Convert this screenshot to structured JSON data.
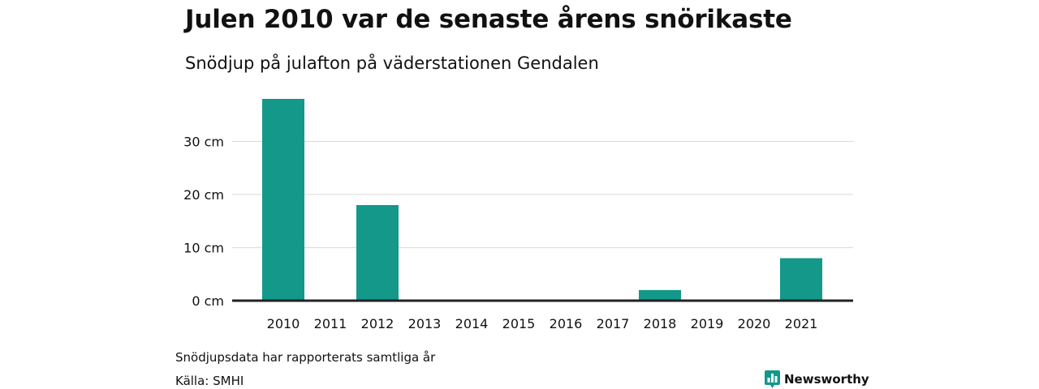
{
  "colors": {
    "bar": "#13988a",
    "grid": "#dddddd",
    "baseline": "#222222",
    "text": "#111111",
    "brand": "#13988a"
  },
  "footer": {
    "note": "Snödjupsdata har rapporterats samtliga år",
    "source": "Källa: SMHI",
    "brand_name": "Newsworthy",
    "brand_icon": "bar-chart-bubble-icon"
  },
  "chart_data": {
    "type": "bar",
    "title": "Julen 2010 var de senaste årens snörikaste",
    "subtitle": "Snödjup på julafton på väderstationen Gendalen",
    "xlabel": "",
    "ylabel": "",
    "categories": [
      "2010",
      "2011",
      "2012",
      "2013",
      "2014",
      "2015",
      "2016",
      "2017",
      "2018",
      "2019",
      "2020",
      "2021"
    ],
    "values": [
      38,
      0,
      18,
      0,
      0,
      0,
      0,
      0,
      2,
      0,
      0,
      8
    ],
    "ylim": [
      0,
      38
    ],
    "yticks": [
      0,
      10,
      20,
      30
    ],
    "ytick_labels": [
      "0 cm",
      "10 cm",
      "20 cm",
      "30 cm"
    ],
    "grid": true,
    "legend": "none"
  }
}
